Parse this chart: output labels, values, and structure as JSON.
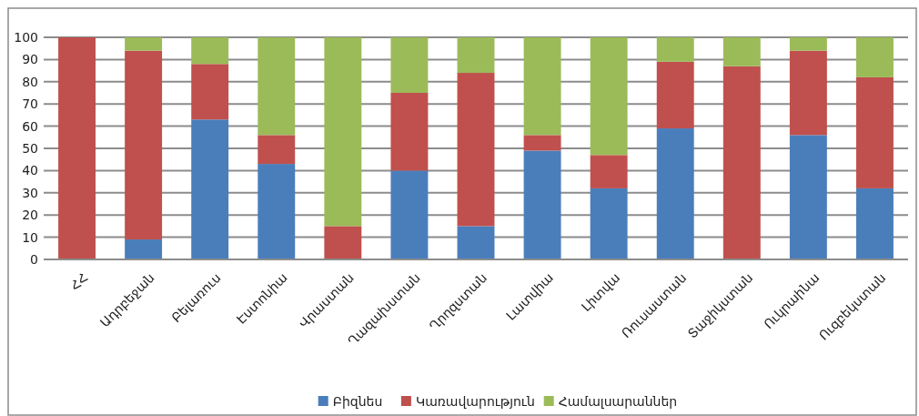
{
  "chart_data": {
    "type": "bar",
    "stacked": true,
    "categories": [
      "ՀՀ",
      "Ադրբեջան",
      "Բելառուս",
      "Էստոնիա",
      "Վրաստան",
      "Ղազախստան",
      "Ղրղզստան",
      "Լատվիա",
      "Լիտվա",
      "Ռուսաստան",
      "Տաջիկստան",
      "Ուկրաինա",
      "Ուզբեկստան"
    ],
    "series": [
      {
        "name": "Բիզնես",
        "color": "#4a7ebb",
        "values": [
          0,
          9,
          63,
          43,
          0,
          40,
          15,
          49,
          32,
          59,
          0,
          56,
          32
        ]
      },
      {
        "name": "Կառավարություն",
        "color": "#c0504d",
        "values": [
          100,
          85,
          25,
          13,
          15,
          35,
          69,
          7,
          15,
          30,
          87,
          38,
          50
        ]
      },
      {
        "name": "Համալսարաններ",
        "color": "#9bbb59",
        "values": [
          0,
          6,
          12,
          44,
          85,
          25,
          16,
          44,
          53,
          11,
          13,
          6,
          18
        ]
      }
    ],
    "ylim": [
      0,
      100
    ],
    "yticks": [
      0,
      10,
      20,
      30,
      40,
      50,
      60,
      70,
      80,
      90,
      100
    ],
    "grid": "y",
    "legend": "bottom"
  }
}
